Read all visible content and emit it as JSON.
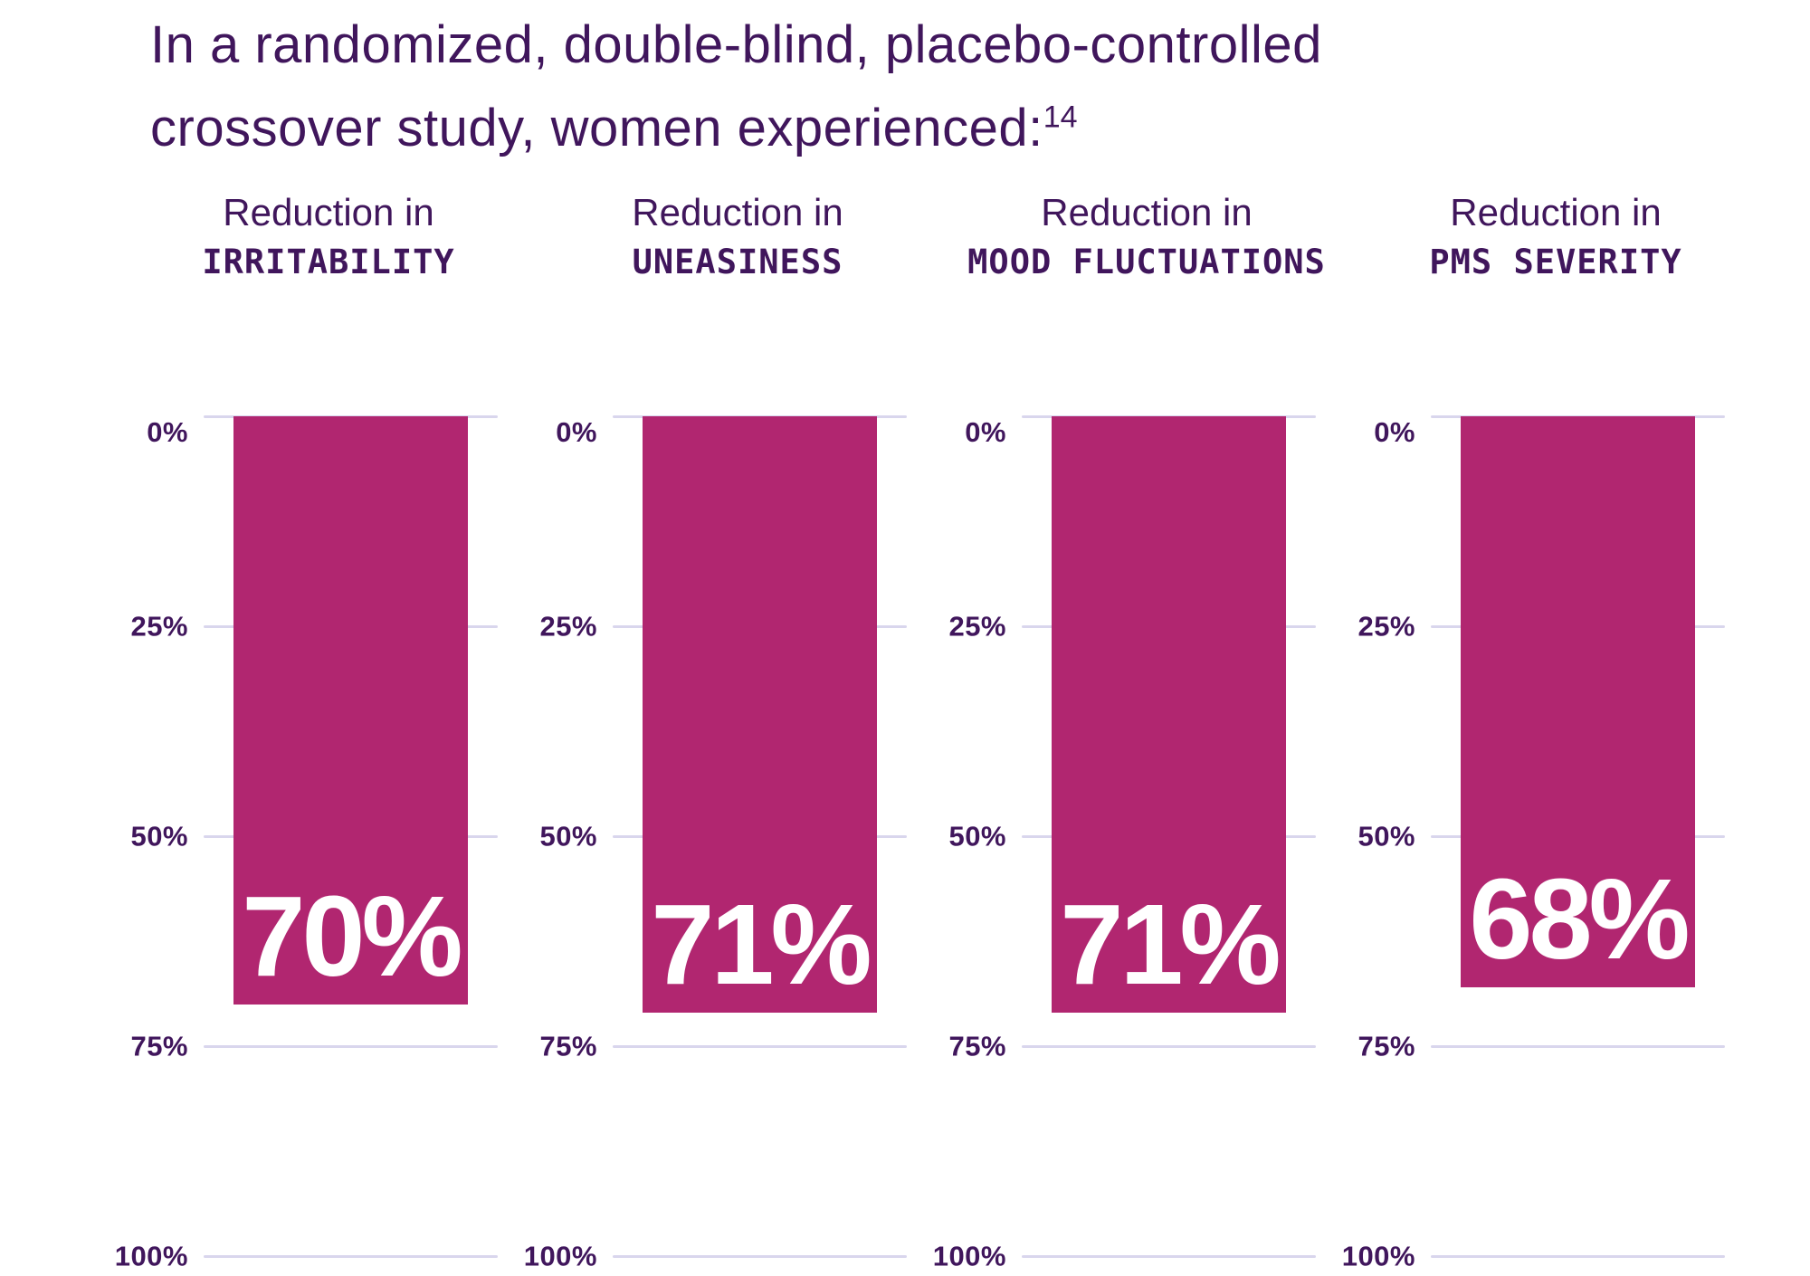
{
  "title": {
    "line1": "In a randomized, double-blind, placebo-controlled",
    "line2": "crossover study, women experienced:",
    "superscript": "14"
  },
  "colors": {
    "bar": "#B12670",
    "text_purple": "#40165C",
    "gridline": "#D9D6ED",
    "bar_value_text": "#FFFFFF",
    "background": "#FFFFFF"
  },
  "chart_data": {
    "type": "bar",
    "orientation": "vertical-columns-descending-from-zero",
    "title": "In a randomized, double-blind, placebo-controlled crossover study, women experienced:",
    "footnote_marker": "14",
    "unit": "% reduction",
    "category_prefix": "Reduction in",
    "categories": [
      "IRRITABILITY",
      "UNEASINESS",
      "MOOD FLUCTUATIONS",
      "PMS SEVERITY"
    ],
    "values": [
      70,
      71,
      71,
      68
    ],
    "value_labels": [
      "70%",
      "71%",
      "71%",
      "68%"
    ],
    "ytick_values": [
      0,
      25,
      50,
      75,
      100
    ],
    "ytick_labels": [
      "0%",
      "25%",
      "50%",
      "75%",
      "100%"
    ],
    "ylim": [
      0,
      100
    ],
    "y_axis_inverted": true,
    "grid": true,
    "legend": false
  }
}
